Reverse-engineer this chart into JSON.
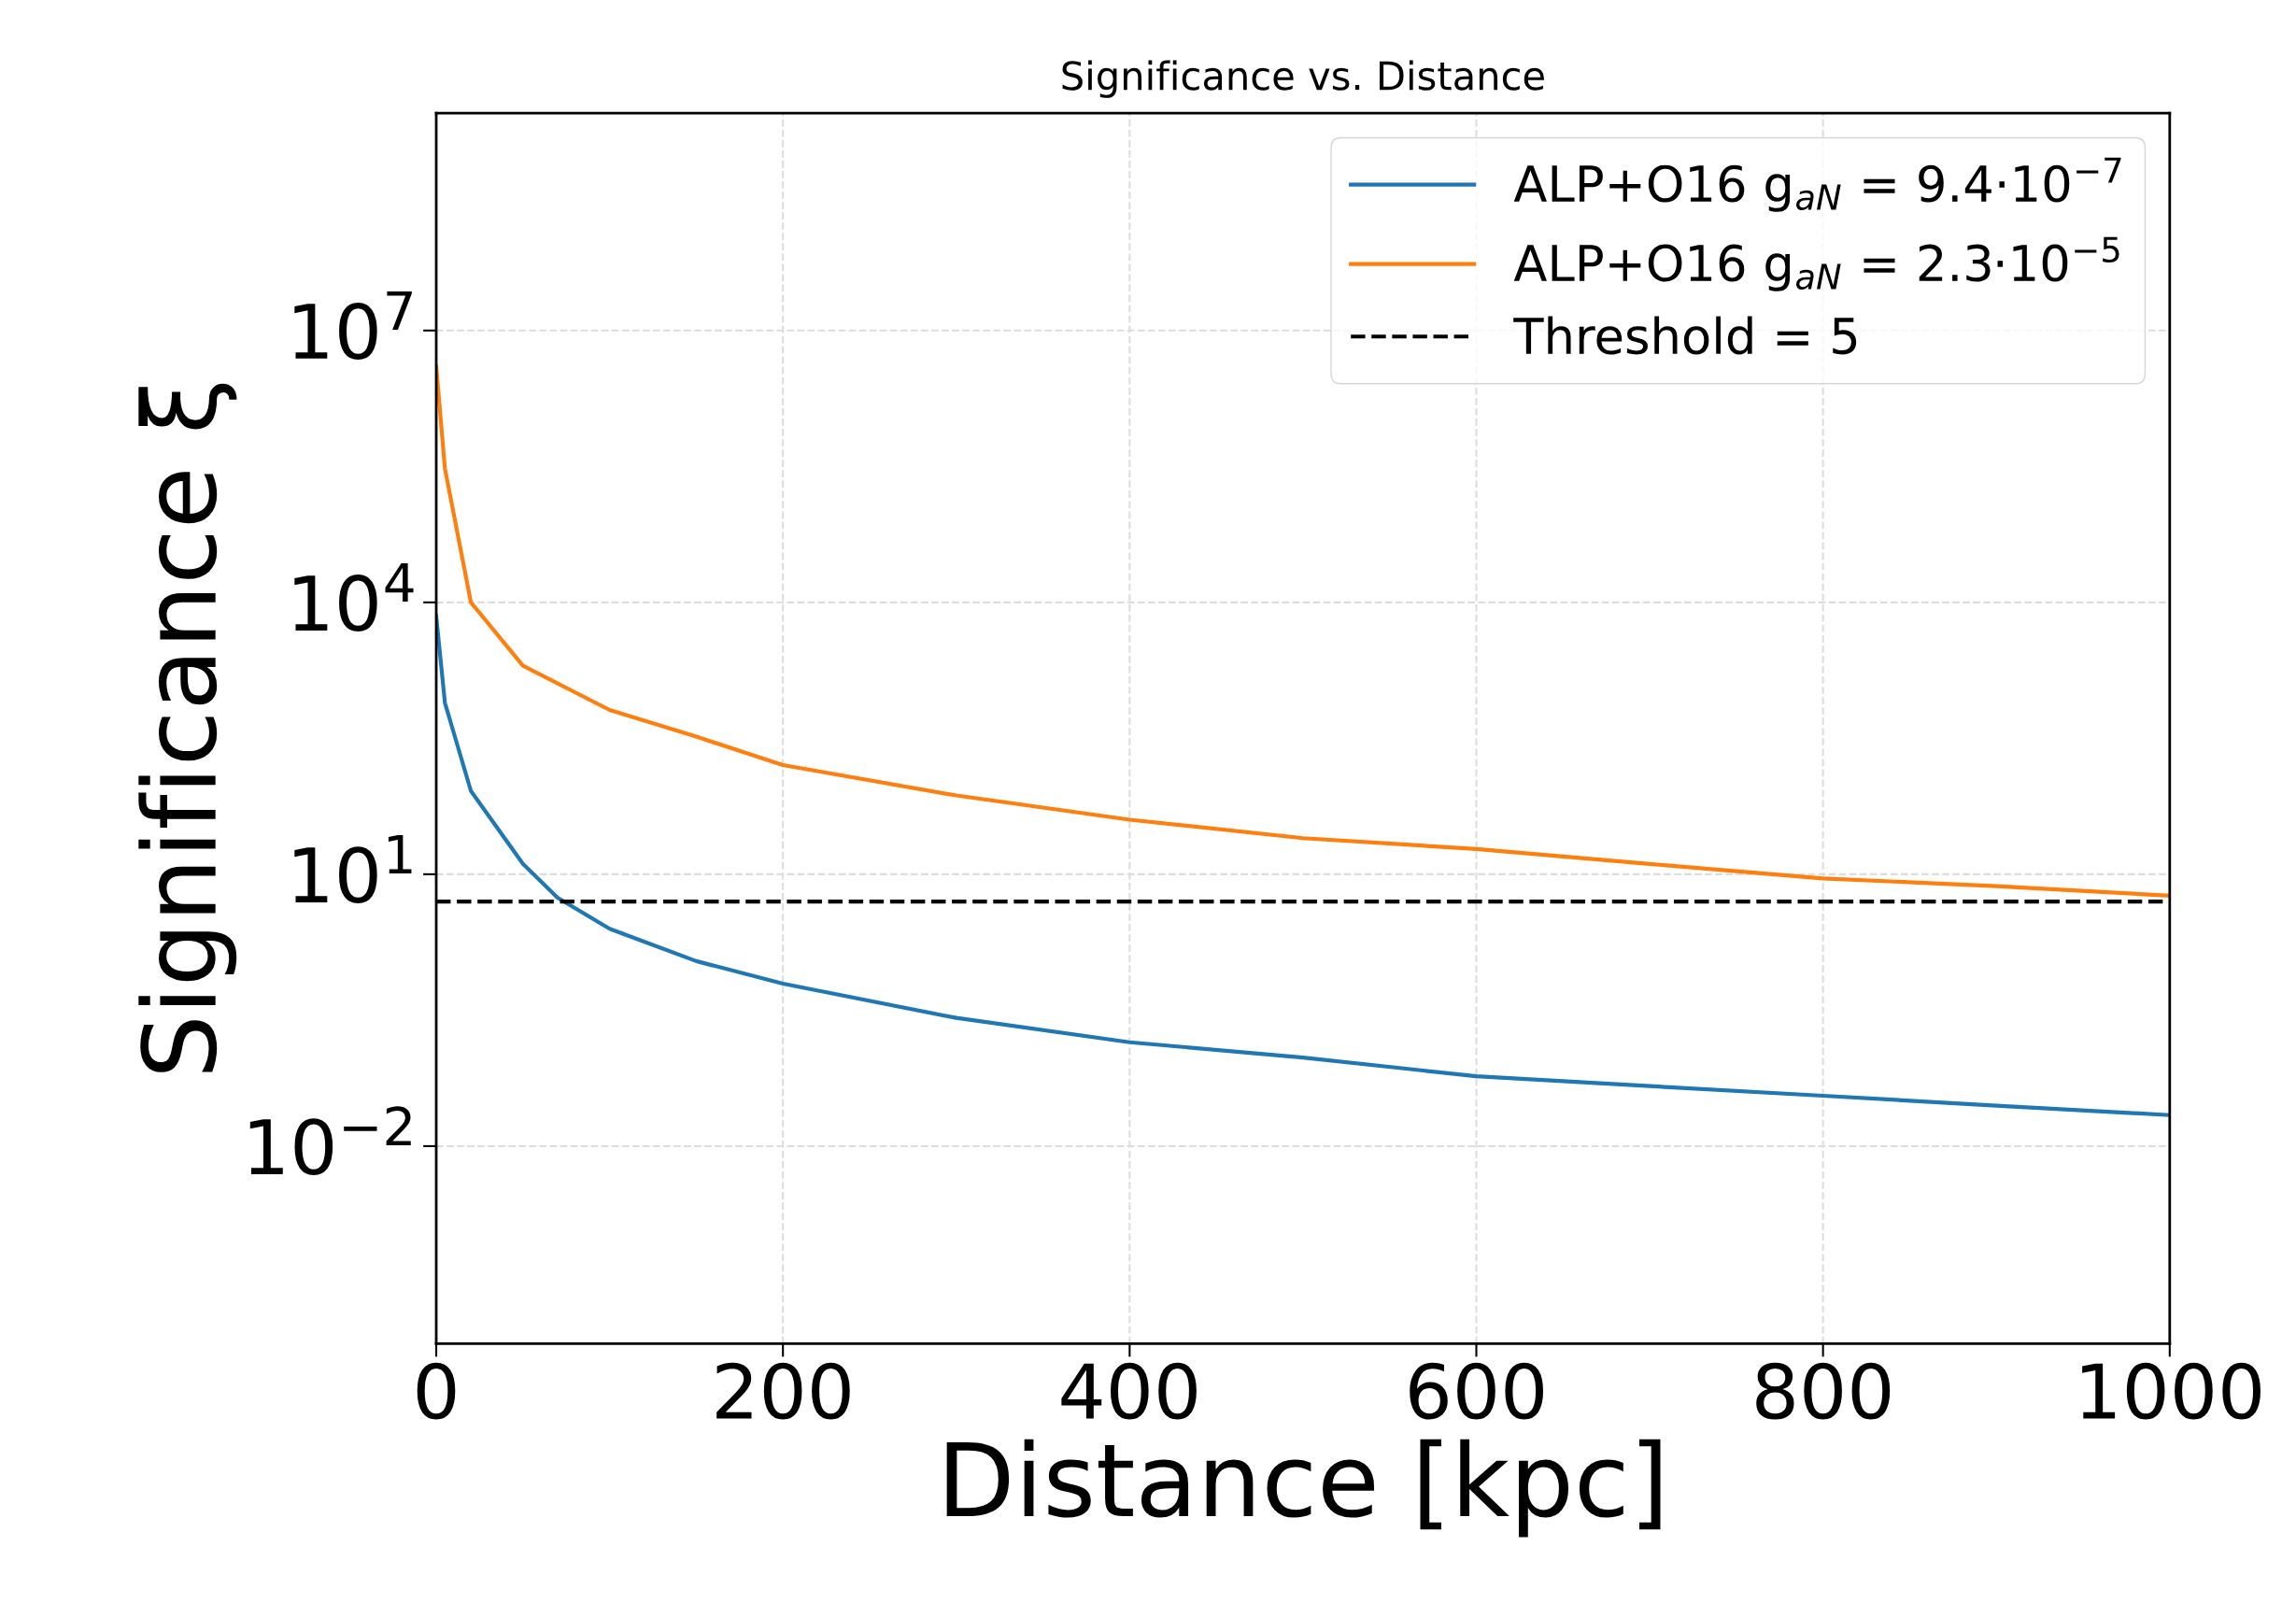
{
  "chart_data": {
    "type": "line",
    "title": "Significance vs. Distance",
    "xlabel": "Distance [kpc]",
    "ylabel": "Significance ξ",
    "series": [
      {
        "name": "ALP+O16 g$_{aN}$ = 9.4·10$^{−7}$",
        "color": "#1f77b4",
        "x": [
          0,
          5,
          20,
          50,
          70,
          100,
          150,
          200,
          300,
          400,
          500,
          600,
          700,
          800,
          900,
          1000
        ],
        "values": [
          7000,
          780,
          83,
          13,
          5.5,
          2.5,
          1.1,
          0.62,
          0.26,
          0.14,
          0.095,
          0.059,
          0.046,
          0.036,
          0.028,
          0.022
        ]
      },
      {
        "name": "ALP+O16 g$_{aN}$ = 2.3·10$^{−5}$",
        "color": "#ff7f0e",
        "x": [
          0,
          5,
          20,
          50,
          100,
          150,
          200,
          300,
          400,
          500,
          600,
          700,
          800,
          900,
          1000
        ],
        "values": [
          4000000,
          300000,
          10000,
          2000,
          650,
          330,
          160,
          74,
          40,
          25,
          19,
          13,
          9,
          7.4,
          5.8
        ]
      }
    ],
    "ref_lines": [
      {
        "axis": "y",
        "value": 5,
        "label": "Threshold = 5",
        "color": "#000000",
        "line_style": "dashed"
      }
    ],
    "log": "y",
    "xlim": [
      0,
      1000
    ],
    "xticks": [
      0,
      200,
      400,
      600,
      800,
      1000
    ],
    "ylim": [
      6.6e-05,
      2500000000
    ],
    "yticks": [
      {
        "value": 0.01,
        "label": "10$^{−2}$"
      },
      {
        "value": 10,
        "label": "10$^{1}$"
      },
      {
        "value": 10000,
        "label": "10$^{4}$"
      },
      {
        "value": 10000000,
        "label": "10$^{7}$"
      }
    ],
    "grid": true,
    "legend": "top right",
    "line_style": "solid",
    "marker": "none"
  }
}
